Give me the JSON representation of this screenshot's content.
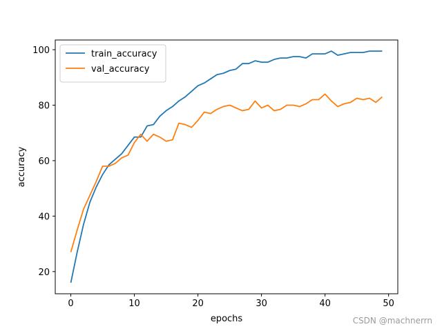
{
  "chart_data": {
    "type": "line",
    "title": "",
    "xlabel": "epochs",
    "ylabel": "accuracy",
    "xlim": [
      -2.45,
      51.45
    ],
    "ylim": [
      12.0,
      103.5
    ],
    "xticks": [
      0,
      10,
      20,
      30,
      40,
      50
    ],
    "yticks": [
      20,
      40,
      60,
      80,
      100
    ],
    "grid": false,
    "legend": "top-left",
    "x": [
      0,
      1,
      2,
      3,
      4,
      5,
      6,
      7,
      8,
      9,
      10,
      11,
      12,
      13,
      14,
      15,
      16,
      17,
      18,
      19,
      20,
      21,
      22,
      23,
      24,
      25,
      26,
      27,
      28,
      29,
      30,
      31,
      32,
      33,
      34,
      35,
      36,
      37,
      38,
      39,
      40,
      41,
      42,
      43,
      44,
      45,
      46,
      47,
      48,
      49
    ],
    "series": [
      {
        "name": "train_accuracy",
        "color": "#1f77b4",
        "values": [
          16.0,
          27.0,
          37.0,
          45.0,
          50.5,
          55.0,
          58.5,
          60.5,
          62.5,
          65.5,
          68.5,
          68.5,
          72.5,
          73.0,
          76.0,
          78.0,
          79.5,
          81.5,
          83.0,
          85.0,
          87.0,
          88.0,
          89.5,
          91.0,
          91.5,
          92.5,
          93.0,
          95.0,
          95.0,
          96.0,
          95.5,
          95.5,
          96.5,
          97.0,
          97.0,
          97.5,
          97.5,
          97.0,
          98.5,
          98.5,
          98.5,
          99.5,
          98.0,
          98.5,
          99.0,
          99.0,
          99.0,
          99.5,
          99.5,
          99.5
        ]
      },
      {
        "name": "val_accuracy",
        "color": "#ff7f0e",
        "values": [
          27.0,
          35.0,
          42.5,
          47.5,
          52.5,
          58.0,
          58.0,
          59.0,
          61.0,
          62.0,
          66.5,
          69.5,
          67.0,
          69.5,
          68.5,
          67.0,
          67.5,
          73.5,
          73.0,
          72.0,
          74.5,
          77.5,
          77.0,
          78.5,
          79.5,
          80.0,
          79.0,
          78.0,
          78.5,
          81.5,
          79.0,
          80.0,
          78.0,
          78.5,
          80.0,
          80.0,
          79.5,
          80.5,
          82.0,
          82.0,
          84.0,
          81.5,
          79.5,
          80.5,
          81.0,
          82.5,
          82.0,
          82.5,
          81.0,
          83.0
        ]
      }
    ]
  },
  "watermark": "CSDN @machnerrn"
}
